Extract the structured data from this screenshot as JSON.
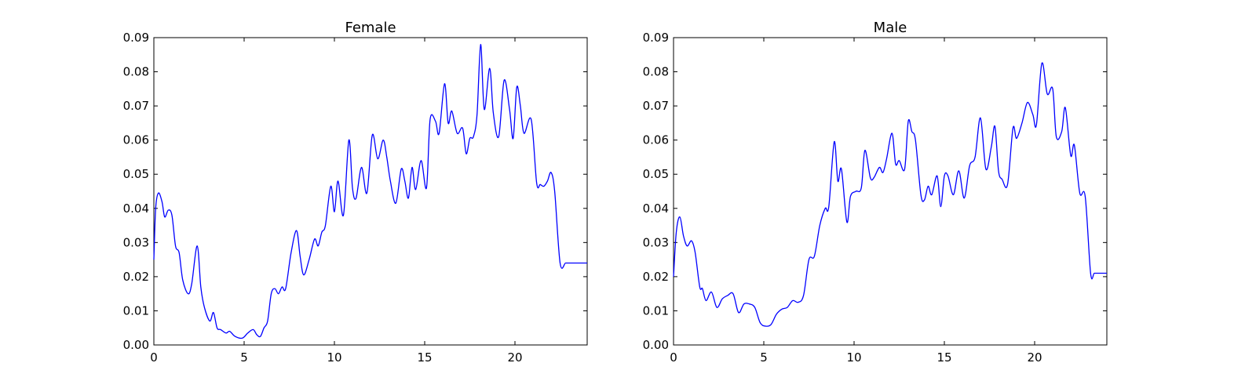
{
  "chart_data": [
    {
      "type": "line",
      "title": "Female",
      "xlabel": "",
      "ylabel": "",
      "xlim": [
        0,
        24
      ],
      "ylim": [
        0,
        0.09
      ],
      "xticks": [
        0,
        5,
        10,
        15,
        20
      ],
      "yticks": [
        0.0,
        0.01,
        0.02,
        0.03,
        0.04,
        0.05,
        0.06,
        0.07,
        0.08,
        0.09
      ],
      "ytick_labels": [
        "0.00",
        "0.01",
        "0.02",
        "0.03",
        "0.04",
        "0.05",
        "0.06",
        "0.07",
        "0.08",
        "0.09"
      ],
      "xtick_labels": [
        "0",
        "5",
        "10",
        "15",
        "20"
      ],
      "grid": false,
      "color": "#0000ff",
      "series": [
        {
          "x": [
            0.0,
            0.1,
            0.25,
            0.45,
            0.6,
            0.8,
            1.0,
            1.2,
            1.4,
            1.6,
            1.9,
            2.1,
            2.4,
            2.6,
            2.8,
            3.1,
            3.3,
            3.5,
            3.7,
            4.0,
            4.2,
            4.5,
            4.9,
            5.2,
            5.5,
            5.7,
            5.9,
            6.1,
            6.3,
            6.5,
            6.7,
            6.9,
            7.1,
            7.3,
            7.6,
            7.9,
            8.1,
            8.3,
            8.6,
            8.9,
            9.1,
            9.3,
            9.5,
            9.8,
            10.0,
            10.2,
            10.5,
            10.8,
            11.0,
            11.2,
            11.5,
            11.8,
            12.1,
            12.4,
            12.7,
            12.9,
            13.1,
            13.4,
            13.7,
            13.9,
            14.1,
            14.3,
            14.5,
            14.8,
            15.1,
            15.3,
            15.6,
            15.8,
            16.1,
            16.3,
            16.5,
            16.8,
            17.1,
            17.3,
            17.5,
            17.7,
            17.9,
            18.1,
            18.3,
            18.6,
            18.8,
            19.1,
            19.4,
            19.7,
            19.9,
            20.1,
            20.3,
            20.5,
            20.9,
            21.2,
            21.4,
            21.6,
            21.8,
            22.0,
            22.2,
            22.5,
            22.8,
            23.0,
            23.3,
            23.6,
            23.8,
            24.0
          ],
          "y": [
            0.025,
            0.04,
            0.0445,
            0.042,
            0.0375,
            0.0395,
            0.038,
            0.029,
            0.027,
            0.019,
            0.015,
            0.018,
            0.029,
            0.017,
            0.011,
            0.007,
            0.0095,
            0.005,
            0.0045,
            0.0035,
            0.004,
            0.0025,
            0.002,
            0.0035,
            0.0045,
            0.003,
            0.0025,
            0.005,
            0.007,
            0.015,
            0.0165,
            0.015,
            0.017,
            0.0165,
            0.027,
            0.0335,
            0.026,
            0.0205,
            0.025,
            0.031,
            0.029,
            0.033,
            0.035,
            0.0465,
            0.039,
            0.048,
            0.038,
            0.06,
            0.046,
            0.043,
            0.052,
            0.0445,
            0.0615,
            0.0545,
            0.06,
            0.055,
            0.048,
            0.0415,
            0.0515,
            0.048,
            0.043,
            0.052,
            0.0455,
            0.054,
            0.046,
            0.066,
            0.0655,
            0.062,
            0.0765,
            0.065,
            0.0685,
            0.062,
            0.0635,
            0.056,
            0.0605,
            0.061,
            0.0675,
            0.088,
            0.069,
            0.081,
            0.068,
            0.061,
            0.0775,
            0.069,
            0.0605,
            0.0755,
            0.07,
            0.062,
            0.066,
            0.0475,
            0.047,
            0.0465,
            0.048,
            0.0505,
            0.045,
            0.024,
            0.024,
            0.024,
            0.024,
            0.024,
            0.024,
            0.024
          ]
        }
      ]
    },
    {
      "type": "line",
      "title": "Male",
      "xlabel": "",
      "ylabel": "",
      "xlim": [
        0,
        24
      ],
      "ylim": [
        0,
        0.09
      ],
      "xticks": [
        0,
        5,
        10,
        15,
        20
      ],
      "yticks": [
        0.0,
        0.01,
        0.02,
        0.03,
        0.04,
        0.05,
        0.06,
        0.07,
        0.08,
        0.09
      ],
      "ytick_labels": [
        "0.00",
        "0.01",
        "0.02",
        "0.03",
        "0.04",
        "0.05",
        "0.06",
        "0.07",
        "0.08",
        "0.09"
      ],
      "xtick_labels": [
        "0",
        "5",
        "10",
        "15",
        "20"
      ],
      "grid": false,
      "color": "#0000ff",
      "series": [
        {
          "x": [
            0.0,
            0.15,
            0.35,
            0.55,
            0.75,
            1.0,
            1.2,
            1.45,
            1.6,
            1.8,
            2.1,
            2.4,
            2.7,
            3.0,
            3.3,
            3.6,
            3.9,
            4.2,
            4.5,
            4.8,
            5.1,
            5.4,
            5.7,
            6.0,
            6.3,
            6.6,
            6.9,
            7.2,
            7.5,
            7.8,
            8.1,
            8.4,
            8.6,
            8.9,
            9.1,
            9.3,
            9.6,
            9.8,
            10.1,
            10.4,
            10.6,
            10.9,
            11.1,
            11.4,
            11.6,
            11.8,
            12.1,
            12.3,
            12.5,
            12.8,
            13.0,
            13.2,
            13.4,
            13.7,
            13.9,
            14.1,
            14.3,
            14.6,
            14.8,
            15.0,
            15.2,
            15.5,
            15.8,
            16.1,
            16.4,
            16.7,
            17.0,
            17.3,
            17.6,
            17.8,
            18.0,
            18.2,
            18.5,
            18.8,
            19.0,
            19.3,
            19.6,
            19.9,
            20.1,
            20.4,
            20.7,
            21.0,
            21.2,
            21.5,
            21.7,
            22.0,
            22.2,
            22.5,
            22.8,
            23.1,
            23.3,
            23.5,
            23.7,
            23.9,
            24.0
          ],
          "y": [
            0.02,
            0.033,
            0.0375,
            0.032,
            0.029,
            0.0305,
            0.027,
            0.017,
            0.0165,
            0.013,
            0.0155,
            0.011,
            0.0135,
            0.0145,
            0.015,
            0.0095,
            0.012,
            0.012,
            0.011,
            0.0065,
            0.0055,
            0.006,
            0.009,
            0.0105,
            0.011,
            0.013,
            0.0125,
            0.0145,
            0.025,
            0.026,
            0.035,
            0.04,
            0.0405,
            0.0595,
            0.048,
            0.0515,
            0.036,
            0.0435,
            0.045,
            0.046,
            0.057,
            0.049,
            0.049,
            0.052,
            0.0505,
            0.0545,
            0.062,
            0.053,
            0.054,
            0.0515,
            0.0655,
            0.0625,
            0.06,
            0.044,
            0.0425,
            0.0465,
            0.044,
            0.0495,
            0.0405,
            0.0495,
            0.0495,
            0.044,
            0.051,
            0.043,
            0.0525,
            0.055,
            0.0665,
            0.0515,
            0.058,
            0.064,
            0.051,
            0.0485,
            0.047,
            0.0635,
            0.0605,
            0.065,
            0.071,
            0.0675,
            0.0645,
            0.0825,
            0.0735,
            0.075,
            0.061,
            0.0625,
            0.0695,
            0.0555,
            0.0585,
            0.0445,
            0.0435,
            0.021,
            0.021,
            0.021,
            0.021,
            0.021,
            0.021
          ]
        }
      ]
    }
  ]
}
